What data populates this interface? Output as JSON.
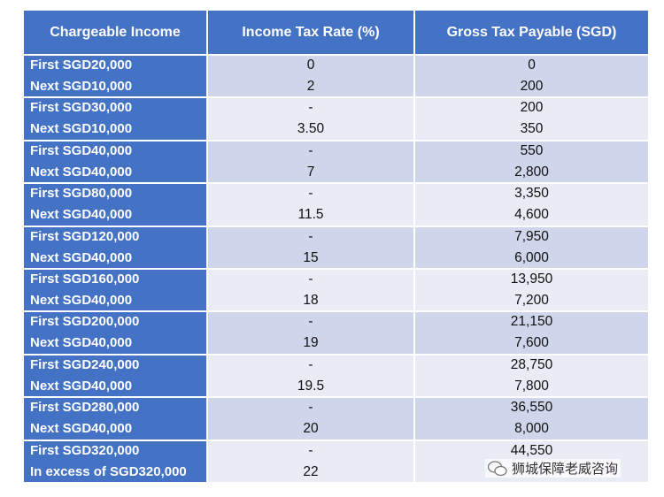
{
  "table": {
    "header": [
      "Chargeable Income",
      "Income Tax Rate (%)",
      "Gross Tax Payable (SGD)"
    ],
    "rows": [
      [
        [
          "First SGD20,000",
          "Next SGD10,000"
        ],
        [
          "0",
          "2"
        ],
        [
          "0",
          "200"
        ]
      ],
      [
        [
          "First SGD30,000",
          "Next SGD10,000"
        ],
        [
          "-",
          "3.50"
        ],
        [
          "200",
          "350"
        ]
      ],
      [
        [
          "First SGD40,000",
          "Next SGD40,000"
        ],
        [
          "-",
          "7"
        ],
        [
          "550",
          "2,800"
        ]
      ],
      [
        [
          "First SGD80,000",
          "Next SGD40,000"
        ],
        [
          "-",
          "11.5"
        ],
        [
          "3,350",
          "4,600"
        ]
      ],
      [
        [
          "First SGD120,000",
          "Next SGD40,000"
        ],
        [
          "-",
          "15"
        ],
        [
          "7,950",
          "6,000"
        ]
      ],
      [
        [
          "First SGD160,000",
          "Next SGD40,000"
        ],
        [
          "-",
          "18"
        ],
        [
          "13,950",
          "7,200"
        ]
      ],
      [
        [
          "First SGD200,000",
          "Next SGD40,000"
        ],
        [
          "-",
          "19"
        ],
        [
          "21,150",
          "7,600"
        ]
      ],
      [
        [
          "First SGD240,000",
          "Next SGD40,000"
        ],
        [
          "-",
          "19.5"
        ],
        [
          "28,750",
          "7,800"
        ]
      ],
      [
        [
          "First SGD280,000",
          "Next SGD40,000"
        ],
        [
          "-",
          "20"
        ],
        [
          "36,550",
          "8,000"
        ]
      ],
      [
        [
          "First SGD320,000",
          "In excess of SGD320,000"
        ],
        [
          "-",
          "22"
        ],
        [
          "44,550",
          ""
        ]
      ]
    ]
  },
  "watermark": "狮城保障老威咨询"
}
